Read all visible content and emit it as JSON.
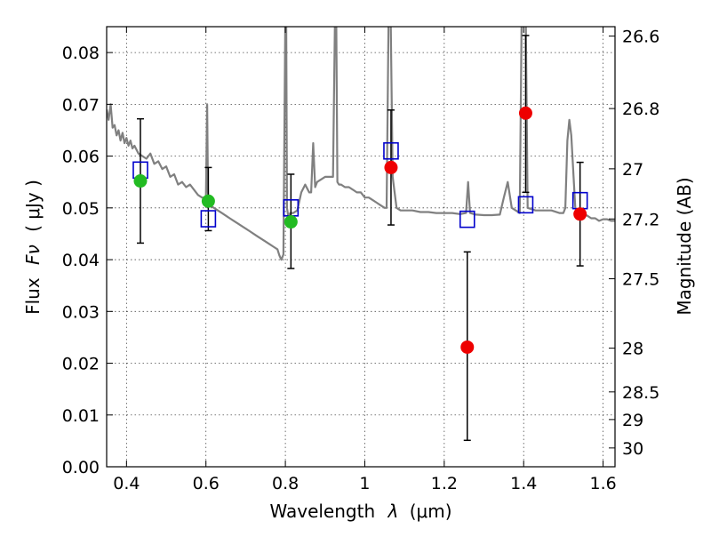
{
  "chart_data": {
    "type": "scatter",
    "title": "",
    "xlabel": "Wavelength",
    "xlabel_symbol": "λ",
    "xlabel_unit": "(μm)",
    "ylabel": "Flux",
    "ylabel_symbol": "Fν",
    "ylabel_unit": "( μJy )",
    "y2label": "Magnitude (AB)",
    "xlim": [
      0.35,
      1.63
    ],
    "ylim": [
      0.0,
      0.085
    ],
    "grid": true,
    "x_ticks": [
      {
        "value": 0.4,
        "label": "0.4"
      },
      {
        "value": 0.6,
        "label": "0.6"
      },
      {
        "value": 0.8,
        "label": "0.8"
      },
      {
        "value": 1.0,
        "label": "1"
      },
      {
        "value": 1.2,
        "label": "1.2"
      },
      {
        "value": 1.4,
        "label": "1.4"
      },
      {
        "value": 1.6,
        "label": "1.6"
      }
    ],
    "y_ticks": [
      {
        "value": 0.0,
        "label": "0.00"
      },
      {
        "value": 0.01,
        "label": "0.01"
      },
      {
        "value": 0.02,
        "label": "0.02"
      },
      {
        "value": 0.03,
        "label": "0.03"
      },
      {
        "value": 0.04,
        "label": "0.04"
      },
      {
        "value": 0.05,
        "label": "0.05"
      },
      {
        "value": 0.06,
        "label": "0.06"
      },
      {
        "value": 0.07,
        "label": "0.07"
      },
      {
        "value": 0.08,
        "label": "0.08"
      }
    ],
    "y2_ticks": [
      {
        "value": 26.6,
        "label": "26.6"
      },
      {
        "value": 26.8,
        "label": "26.8"
      },
      {
        "value": 27.0,
        "label": "27"
      },
      {
        "value": 27.2,
        "label": "27.2"
      },
      {
        "value": 27.5,
        "label": "27.5"
      },
      {
        "value": 28.0,
        "label": "28"
      },
      {
        "value": 28.5,
        "label": "28.5"
      },
      {
        "value": 29.0,
        "label": "29"
      },
      {
        "value": 30.0,
        "label": "30"
      }
    ],
    "colors": {
      "model": "#808080",
      "model_photometry": "#0000cc",
      "observed_secure": "#22bb22",
      "observed_other": "#ee0000",
      "errorbar": "#000000"
    },
    "model_spectrum": {
      "name": "model SED",
      "x": [
        0.35,
        0.355,
        0.36,
        0.365,
        0.37,
        0.375,
        0.38,
        0.385,
        0.39,
        0.395,
        0.4,
        0.405,
        0.41,
        0.415,
        0.42,
        0.43,
        0.44,
        0.45,
        0.46,
        0.47,
        0.48,
        0.49,
        0.5,
        0.51,
        0.52,
        0.53,
        0.54,
        0.55,
        0.56,
        0.57,
        0.58,
        0.59,
        0.6,
        0.603,
        0.605,
        0.607,
        0.61,
        0.62,
        0.63,
        0.64,
        0.65,
        0.66,
        0.67,
        0.68,
        0.69,
        0.7,
        0.71,
        0.72,
        0.73,
        0.74,
        0.75,
        0.76,
        0.77,
        0.78,
        0.785,
        0.79,
        0.795,
        0.8,
        0.802,
        0.804,
        0.808,
        0.812,
        0.82,
        0.83,
        0.84,
        0.85,
        0.86,
        0.865,
        0.87,
        0.875,
        0.88,
        0.89,
        0.9,
        0.91,
        0.92,
        0.925,
        0.928,
        0.931,
        0.935,
        0.94,
        0.95,
        0.96,
        0.97,
        0.98,
        0.99,
        1.0,
        1.01,
        1.02,
        1.03,
        1.04,
        1.05,
        1.055,
        1.06,
        1.065,
        1.07,
        1.08,
        1.09,
        1.1,
        1.12,
        1.14,
        1.16,
        1.18,
        1.2,
        1.22,
        1.24,
        1.255,
        1.26,
        1.265,
        1.28,
        1.3,
        1.32,
        1.34,
        1.35,
        1.36,
        1.37,
        1.38,
        1.39,
        1.395,
        1.4,
        1.405,
        1.41,
        1.43,
        1.45,
        1.47,
        1.49,
        1.5,
        1.505,
        1.51,
        1.515,
        1.52,
        1.53,
        1.54,
        1.55,
        1.56,
        1.57,
        1.58,
        1.59,
        1.6,
        1.61,
        1.62,
        1.63
      ],
      "y": [
        0.069,
        0.067,
        0.07,
        0.0655,
        0.066,
        0.064,
        0.065,
        0.063,
        0.0645,
        0.0625,
        0.0635,
        0.062,
        0.063,
        0.0615,
        0.062,
        0.0605,
        0.06,
        0.0595,
        0.0605,
        0.0585,
        0.059,
        0.0575,
        0.058,
        0.056,
        0.0565,
        0.0545,
        0.055,
        0.054,
        0.0545,
        0.0535,
        0.0525,
        0.052,
        0.052,
        0.07,
        0.053,
        0.051,
        0.0505,
        0.05,
        0.0495,
        0.049,
        0.0485,
        0.048,
        0.0475,
        0.047,
        0.0465,
        0.046,
        0.0455,
        0.045,
        0.0445,
        0.044,
        0.0435,
        0.043,
        0.0425,
        0.042,
        0.0408,
        0.04,
        0.041,
        0.088,
        0.088,
        0.05,
        0.048,
        0.049,
        0.049,
        0.0495,
        0.053,
        0.0545,
        0.053,
        0.053,
        0.0625,
        0.054,
        0.055,
        0.0555,
        0.056,
        0.056,
        0.056,
        0.088,
        0.088,
        0.055,
        0.0545,
        0.0545,
        0.054,
        0.054,
        0.0535,
        0.053,
        0.053,
        0.052,
        0.052,
        0.0515,
        0.051,
        0.0505,
        0.05,
        0.05,
        0.088,
        0.088,
        0.056,
        0.05,
        0.0495,
        0.0495,
        0.0495,
        0.0492,
        0.0492,
        0.049,
        0.049,
        0.049,
        0.0488,
        0.049,
        0.055,
        0.049,
        0.0487,
        0.0486,
        0.0486,
        0.0487,
        0.052,
        0.055,
        0.05,
        0.0495,
        0.049,
        0.088,
        0.088,
        0.088,
        0.05,
        0.0495,
        0.0495,
        0.0495,
        0.049,
        0.049,
        0.05,
        0.063,
        0.067,
        0.064,
        0.05,
        0.049,
        0.049,
        0.0485,
        0.048,
        0.048,
        0.0475,
        0.0478,
        0.0478,
        0.0475,
        0.0475
      ]
    },
    "series": [
      {
        "name": "model photometry",
        "marker": "open-square",
        "x": [
          0.435,
          0.606,
          0.814,
          1.066,
          1.258,
          1.405,
          1.542
        ],
        "y": [
          0.0573,
          0.0479,
          0.05,
          0.061,
          0.0478,
          0.0506,
          0.0514
        ]
      },
      {
        "name": "observed photometry (green)",
        "marker": "filled-circle",
        "x": [
          0.435,
          0.606,
          0.814
        ],
        "y": [
          0.0552,
          0.0513,
          0.0473
        ],
        "yerr_low": [
          0.0432,
          0.0456,
          0.0383
        ],
        "yerr_high": [
          0.0672,
          0.0578,
          0.0565
        ]
      },
      {
        "name": "observed photometry (red)",
        "marker": "filled-circle",
        "x": [
          1.066,
          1.258,
          1.405,
          1.542
        ],
        "y": [
          0.0578,
          0.0231,
          0.0683,
          0.0488
        ],
        "yerr_low": [
          0.0467,
          0.0051,
          0.053,
          0.0388
        ],
        "yerr_high": [
          0.0689,
          0.0415,
          0.0833,
          0.0588
        ]
      }
    ]
  }
}
